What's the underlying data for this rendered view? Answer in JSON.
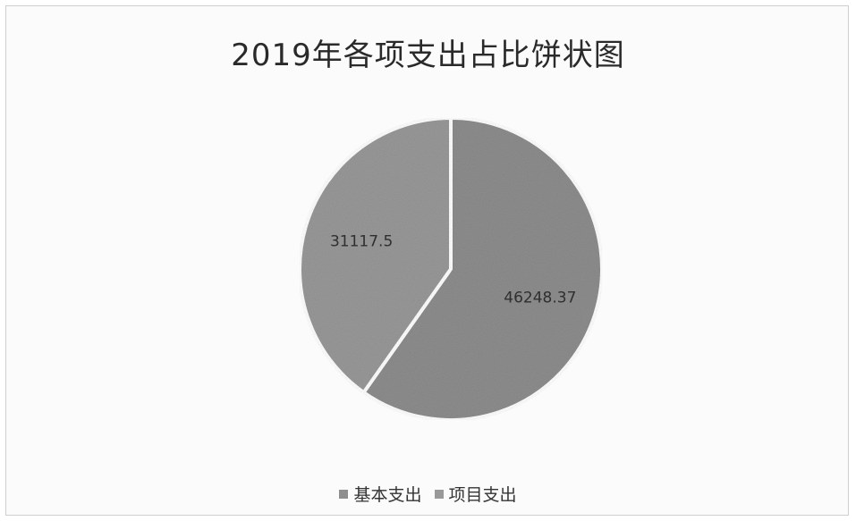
{
  "chart_data": {
    "type": "pie",
    "title": "2019年各项支出占比饼状图",
    "categories": [
      "基本支出",
      "项目支出"
    ],
    "values": [
      46248.37,
      31117.5
    ],
    "data_labels": [
      "46248.37",
      "31117.5"
    ],
    "colors": [
      "#8e8e8e",
      "#999999"
    ],
    "legend_position": "bottom"
  }
}
